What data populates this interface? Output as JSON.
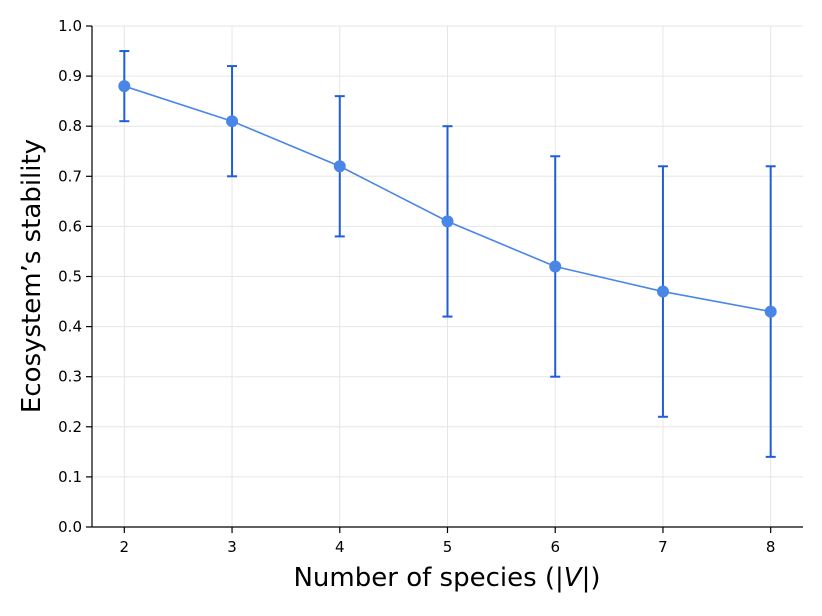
{
  "chart_data": {
    "type": "line",
    "title": "",
    "xlabel": "Number of species (|V|)",
    "xlabel_parts": {
      "prefix": "Number of species (|",
      "italic": "V",
      "suffix": "|)"
    },
    "ylabel": "Ecosystem’s stability",
    "x": [
      2,
      3,
      4,
      5,
      6,
      7,
      8
    ],
    "x_ticks": [
      2,
      3,
      4,
      5,
      6,
      7,
      8
    ],
    "y_ticks": [
      "0.0",
      "0.1",
      "0.2",
      "0.3",
      "0.4",
      "0.5",
      "0.6",
      "0.7",
      "0.8",
      "0.9",
      "1.0"
    ],
    "xlim": [
      1.7,
      8.3
    ],
    "ylim": [
      0.0,
      1.0
    ],
    "grid": true,
    "series": [
      {
        "name": "stability",
        "values": [
          0.88,
          0.81,
          0.72,
          0.61,
          0.52,
          0.47,
          0.43
        ],
        "error_low": [
          0.81,
          0.7,
          0.58,
          0.42,
          0.3,
          0.22,
          0.14
        ],
        "error_high": [
          0.95,
          0.92,
          0.86,
          0.8,
          0.74,
          0.72,
          0.72
        ],
        "line_color": "#4a86e8",
        "marker_color": "#4a86e8",
        "errorbar_color": "#1f5fd6"
      }
    ]
  }
}
